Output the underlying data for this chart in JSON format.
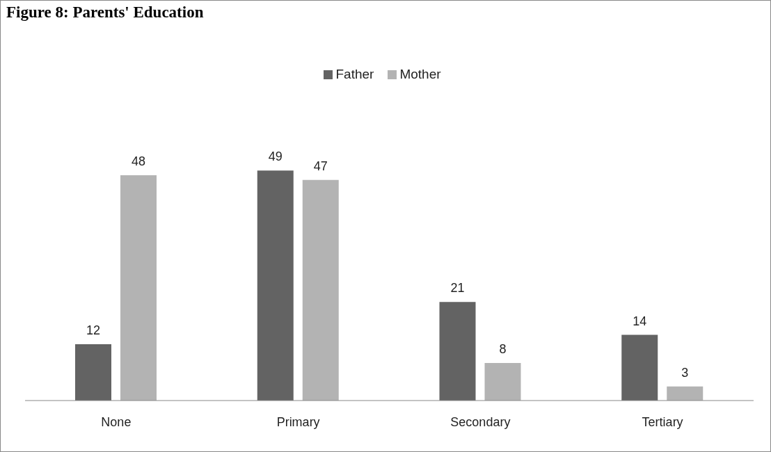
{
  "chart_data": {
    "type": "bar",
    "title": "Figure 8: Parents' Education",
    "categories": [
      "None",
      "Primary",
      "Secondary",
      "Tertiary"
    ],
    "series": [
      {
        "name": "Father",
        "color": "#636363",
        "values": [
          12,
          49,
          21,
          14
        ]
      },
      {
        "name": "Mother",
        "color": "#b3b3b3",
        "values": [
          48,
          47,
          8,
          3
        ]
      }
    ],
    "data_labels": true,
    "legend": "top",
    "grid": false
  }
}
